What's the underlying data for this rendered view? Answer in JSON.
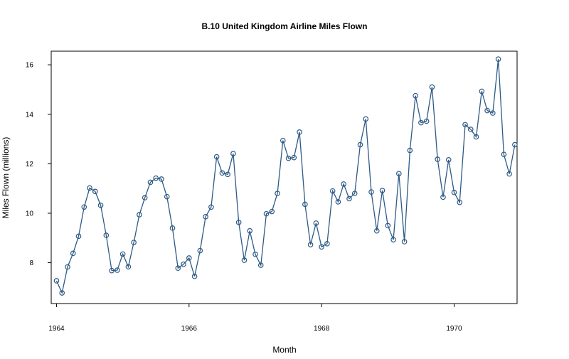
{
  "chart_data": {
    "type": "line",
    "title": "B.10 United Kingdom Airline Miles Flown",
    "xlabel": "Month",
    "ylabel": "Miles Flown (millions)",
    "xlim": [
      1963.92,
      1970.95
    ],
    "ylim": [
      6.35,
      16.55
    ],
    "x_ticks": [
      1964,
      1966,
      1968,
      1970
    ],
    "x_tick_labels": [
      "1964",
      "1966",
      "1968",
      "1970"
    ],
    "y_ticks": [
      8,
      10,
      12,
      14,
      16
    ],
    "y_tick_labels": [
      "8",
      "10",
      "12",
      "14",
      "16"
    ],
    "grid": false,
    "legend": "none",
    "marker": "open-circle",
    "line_color": "#2e5a85",
    "start_year": 1964,
    "series": [
      {
        "values": [
          7.27,
          6.78,
          7.83,
          8.38,
          9.07,
          10.25,
          11.02,
          10.88,
          10.32,
          9.11,
          7.68,
          7.7,
          8.35,
          7.84,
          8.82,
          9.94,
          10.63,
          11.25,
          11.42,
          11.38,
          10.67,
          9.4,
          7.78,
          7.94,
          8.19,
          7.45,
          8.49,
          9.86,
          10.25,
          12.28,
          11.63,
          11.57,
          12.41,
          9.63,
          8.1,
          9.29,
          8.34,
          7.9,
          9.98,
          10.07,
          10.8,
          12.94,
          12.22,
          12.25,
          13.28,
          10.36,
          8.73,
          9.6,
          8.64,
          8.77,
          10.9,
          10.46,
          11.18,
          10.59,
          10.8,
          12.77,
          13.81,
          10.86,
          9.29,
          10.92,
          9.5,
          8.93,
          11.6,
          8.85,
          12.54,
          14.75,
          13.66,
          13.72,
          15.1,
          12.18,
          10.65,
          12.16,
          10.84,
          10.44,
          13.58,
          13.39,
          13.09,
          14.93,
          14.15,
          14.05,
          16.23,
          12.38,
          11.59,
          12.77
        ]
      }
    ]
  }
}
